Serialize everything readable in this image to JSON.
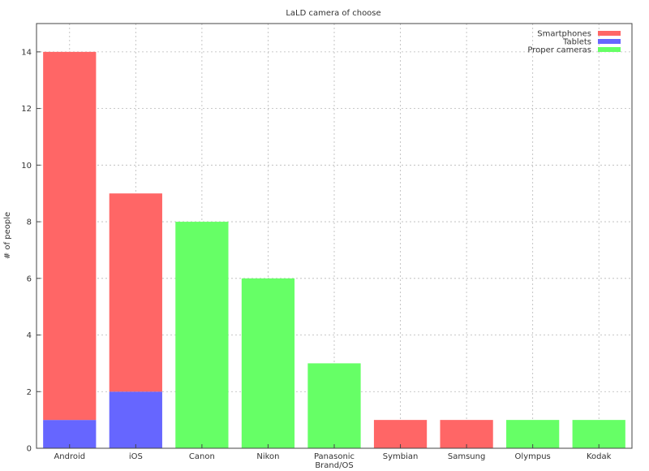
{
  "chart_data": {
    "type": "bar",
    "stacked": true,
    "title": "LaLD camera of choose",
    "xlabel": "Brand/OS",
    "ylabel": "# of people",
    "ylim": [
      0,
      15
    ],
    "yticks": [
      0,
      2,
      4,
      6,
      8,
      10,
      12,
      14
    ],
    "grid": true,
    "legend_position": "top-right",
    "categories": [
      "Android",
      "iOS",
      "Canon",
      "Nikon",
      "Panasonic",
      "Symbian",
      "Samsung",
      "Olympus",
      "Kodak"
    ],
    "series": [
      {
        "name": "Tablets",
        "color": "#6666ff",
        "values": [
          1,
          2,
          0,
          0,
          0,
          0,
          0,
          0,
          0
        ]
      },
      {
        "name": "Smartphones",
        "color": "#ff6666",
        "values": [
          13,
          7,
          0,
          0,
          0,
          1,
          1,
          0,
          0
        ]
      },
      {
        "name": "Proper cameras",
        "color": "#66ff66",
        "values": [
          0,
          0,
          8,
          6,
          3,
          0,
          0,
          1,
          1
        ]
      }
    ],
    "legend_order": [
      "Smartphones",
      "Tablets",
      "Proper cameras"
    ]
  }
}
